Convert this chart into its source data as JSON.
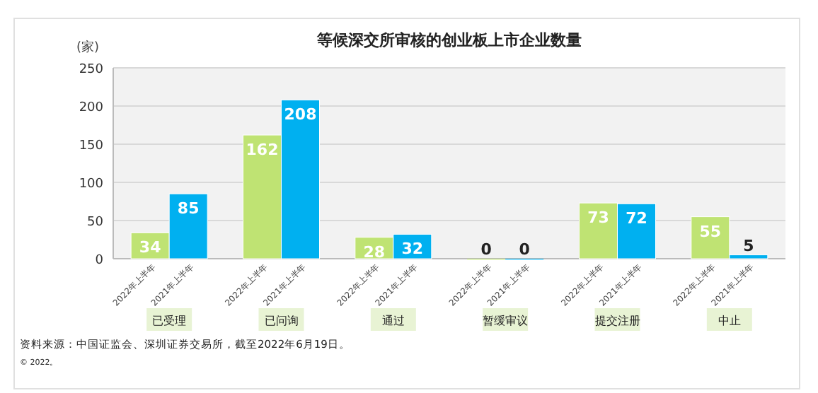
{
  "chart_data": {
    "type": "bar",
    "title": "等候深交所审核的创业板上市企业数量",
    "ylabel": "(家)",
    "categories": [
      "已受理",
      "已问询",
      "通过",
      "暂缓审议",
      "提交注册",
      "中止"
    ],
    "series": [
      {
        "name": "2022年上半年",
        "color": "#bfe373",
        "values": [
          34,
          162,
          28,
          0,
          73,
          55
        ]
      },
      {
        "name": "2021年上半年",
        "color": "#00b0f0",
        "values": [
          85,
          208,
          32,
          0,
          72,
          5
        ]
      }
    ],
    "ylim": [
      0,
      250
    ],
    "yticks": [
      0,
      50,
      100,
      150,
      200,
      250
    ],
    "grid": "y",
    "data_labels": true,
    "annotations": [
      "资料来源：中国证监会、深圳证券交易所，截至2022年6月19日。",
      "© 2022。"
    ]
  }
}
